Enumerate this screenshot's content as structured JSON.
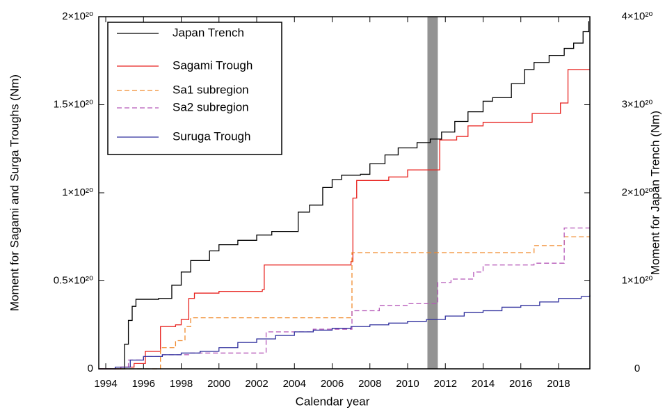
{
  "chart_data": {
    "type": "line",
    "step": "post",
    "x_label": "Calendar year",
    "y_label": "Moment for Sagami and Surga Troughs (Nm)",
    "y2_label": "Moment for Japan Trench (Nm)",
    "xlim": [
      1993.63,
      2019.66
    ],
    "xticks": [
      1994,
      1996,
      1998,
      2000,
      2002,
      2004,
      2006,
      2008,
      2010,
      2012,
      2014,
      2016,
      2018
    ],
    "ylim": [
      0,
      2e+20
    ],
    "yticks": [
      0,
      {
        "value": 5e+19,
        "label": "0.5×10²⁰"
      },
      {
        "value": 1e+20,
        "label": "1×10²⁰"
      },
      {
        "value": 1.5e+20,
        "label": "1.5×10²⁰"
      },
      {
        "value": 2e+20,
        "label": "2×10²⁰"
      }
    ],
    "y2lim": [
      0,
      4e+20
    ],
    "y2ticks": [
      0,
      {
        "value": 1e+20,
        "label": "1×10²⁰"
      },
      {
        "value": 2e+20,
        "label": "2×10²⁰"
      },
      {
        "value": 3e+20,
        "label": "3×10²⁰"
      },
      {
        "value": 4e+20,
        "label": "4×10²⁰"
      }
    ],
    "highlight_span": {
      "x": [
        2011.05,
        2011.6
      ],
      "color": "#939393"
    },
    "legend": "upper left",
    "series": [
      {
        "name": "Japan Trench",
        "color": "#000000",
        "line_style": "solid",
        "axis": "y2",
        "x": [
          1993.63,
          1994.9,
          1995.0,
          1995.2,
          1995.4,
          1995.6,
          1996.8,
          1997.5,
          1998.0,
          1998.5,
          1999.5,
          2000.0,
          2001.0,
          2002.0,
          2002.8,
          2004.2,
          2004.8,
          2005.5,
          2006.0,
          2006.5,
          2007.5,
          2008.0,
          2008.8,
          2009.5,
          2010.5,
          2011.2,
          2011.8,
          2012.5,
          2013.2,
          2014.0,
          2014.5,
          2015.5,
          2016.2,
          2016.7,
          2017.5,
          2018.3,
          2018.8,
          2019.3,
          2019.6
        ],
        "values": [
          0,
          0,
          2.8e+19,
          5.5e+19,
          7.1e+19,
          7.9e+19,
          8e+19,
          9.5e+19,
          1.1e+20,
          1.23e+20,
          1.34e+20,
          1.41e+20,
          1.46e+20,
          1.52e+20,
          1.56e+20,
          1.78e+20,
          1.86e+20,
          2.06e+20,
          2.15e+20,
          2.2e+20,
          2.21e+20,
          2.33e+20,
          2.43e+20,
          2.51e+20,
          2.57e+20,
          2.61e+20,
          2.69e+20,
          2.81e+20,
          2.92e+20,
          3.04e+20,
          3.08e+20,
          3.24e+20,
          3.4e+20,
          3.48e+20,
          3.56e+20,
          3.64e+20,
          3.7e+20,
          3.83e+20,
          3.95e+20
        ]
      },
      {
        "name": "Sagami Trough",
        "color": "#e8221e",
        "line_style": "solid",
        "x": [
          1993.63,
          1994.8,
          1995.5,
          1996.1,
          1996.9,
          1997.7,
          1998.0,
          1998.4,
          1998.7,
          2000.0,
          2002.3,
          2002.4,
          2007.0,
          2007.1,
          2007.3,
          2009.0,
          2010.0,
          2011.7,
          2012.6,
          2013.2,
          2014.0,
          2016.6,
          2018.1,
          2018.5,
          2019.66
        ],
        "values": [
          0,
          1e+18,
          3e+18,
          1e+19,
          2.4e+19,
          2.5e+19,
          2.8e+19,
          4e+19,
          4.3e+19,
          4.4e+19,
          4.5e+19,
          5.9e+19,
          6.1e+19,
          9.7e+19,
          1.07e+20,
          1.09e+20,
          1.13e+20,
          1.3e+20,
          1.32e+20,
          1.38e+20,
          1.4e+20,
          1.45e+20,
          1.51e+20,
          1.7e+20,
          1.7e+20
        ]
      },
      {
        "name": "Sa1 subregion",
        "color": "#f08a2c",
        "line_style": "dashed",
        "x": [
          1993.63,
          1996.9,
          1997.7,
          1998.2,
          1998.5,
          2007.05,
          2016.7,
          2018.3,
          2019.66
        ],
        "values": [
          0,
          1.2e+19,
          1.6e+19,
          2.4e+19,
          2.9e+19,
          6.6e+19,
          7e+19,
          7.5e+19,
          7.5e+19
        ]
      },
      {
        "name": "Sa2 subregion",
        "color": "#b557b8",
        "line_style": "dashed",
        "x": [
          1993.63,
          1994.8,
          1995.2,
          1996.0,
          1997.0,
          1998.4,
          2002.5,
          2005.0,
          2007.05,
          2008.5,
          2010.0,
          2011.6,
          2012.3,
          2013.5,
          2014.0,
          2016.7,
          2018.3,
          2019.66
        ],
        "values": [
          0,
          1e+18,
          5e+18,
          7e+18,
          8e+18,
          9e+18,
          2.1e+19,
          2.25e+19,
          3.3e+19,
          3.6e+19,
          3.7e+19,
          4.9e+19,
          5.1e+19,
          5.5e+19,
          5.9e+19,
          6e+19,
          8e+19,
          8e+19
        ]
      },
      {
        "name": "Suruga Trough",
        "color": "#2e2e9c",
        "line_style": "solid",
        "x": [
          1993.63,
          1994.5,
          1995.3,
          1996.0,
          1997.0,
          1998.0,
          1999.0,
          2000.0,
          2001.0,
          2002.0,
          2003.0,
          2004.0,
          2005.0,
          2006.0,
          2007.0,
          2008.0,
          2009.0,
          2010.0,
          2011.0,
          2012.0,
          2013.0,
          2014.0,
          2015.0,
          2016.0,
          2017.0,
          2018.0,
          2019.2,
          2019.66
        ],
        "values": [
          0,
          1e+18,
          5e+18,
          7e+18,
          8e+18,
          9e+18,
          1e+19,
          1.2e+19,
          1.5e+19,
          1.7e+19,
          1.9e+19,
          2.1e+19,
          2.2e+19,
          2.3e+19,
          2.4e+19,
          2.5e+19,
          2.6e+19,
          2.7e+19,
          2.8e+19,
          3e+19,
          3.2e+19,
          3.3e+19,
          3.5e+19,
          3.6e+19,
          3.8e+19,
          4e+19,
          4.1e+19,
          4.2e+19
        ]
      }
    ]
  }
}
